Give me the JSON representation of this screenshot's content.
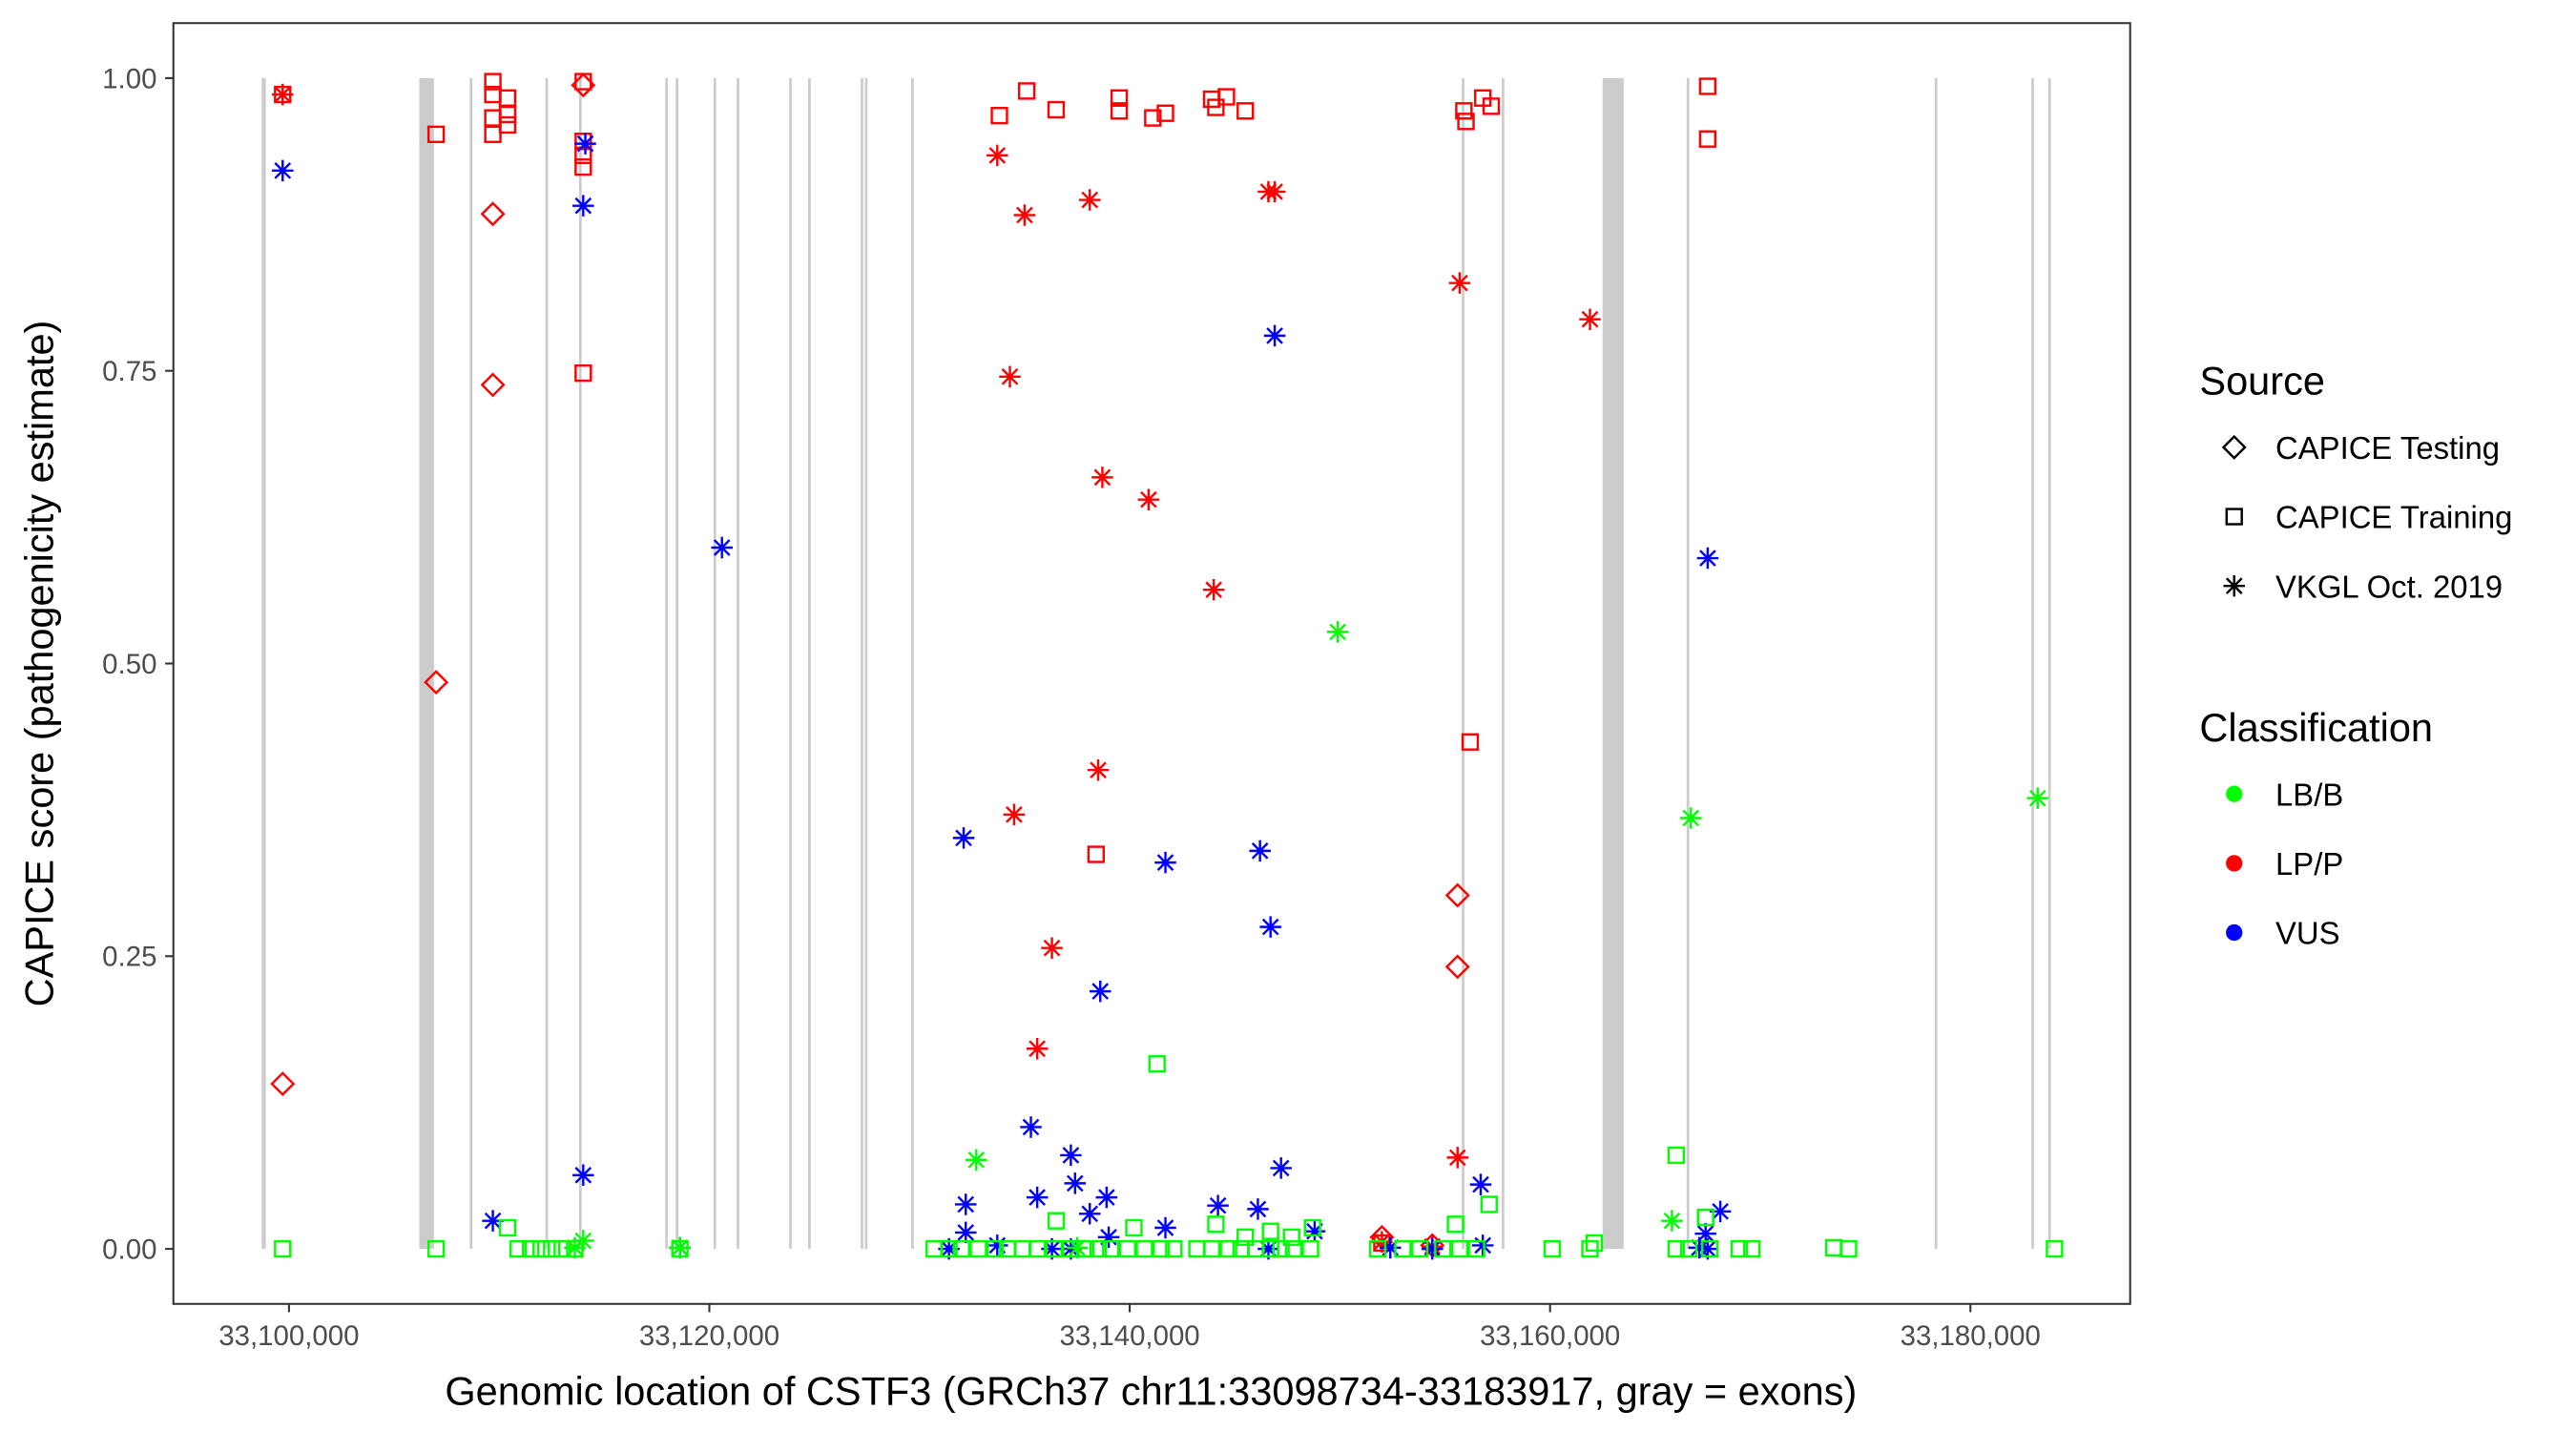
{
  "chart_data": {
    "type": "scatter",
    "xlabel": "Genomic location of CSTF3 (GRCh37 chr11:33098734-33183917, gray = exons)",
    "ylabel": "CAPICE score (pathogenicity estimate)",
    "x_unit": "kb",
    "xlim": [
      33094.5,
      33187.6
    ],
    "ylim": [
      -0.047,
      1.047
    ],
    "xticks": [
      {
        "value": 33100,
        "label": "33,100,000"
      },
      {
        "value": 33120,
        "label": "33,120,000"
      },
      {
        "value": 33140,
        "label": "33,140,000"
      },
      {
        "value": 33160,
        "label": "33,160,000"
      },
      {
        "value": 33180,
        "label": "33,180,000"
      }
    ],
    "yticks": [
      {
        "value": 0,
        "label": "0.00"
      },
      {
        "value": 0.25,
        "label": "0.25"
      },
      {
        "value": 0.5,
        "label": "0.50"
      },
      {
        "value": 0.75,
        "label": "0.75"
      },
      {
        "value": 1,
        "label": "1.00"
      }
    ],
    "grid": false,
    "exons_kb": [
      [
        33098.7,
        33098.9
      ],
      [
        33106.2,
        33106.9
      ],
      [
        33108.6,
        33108.7
      ],
      [
        33112.2,
        33112.3
      ],
      [
        33113.8,
        33113.9
      ],
      [
        33117.9,
        33118.0
      ],
      [
        33118.4,
        33118.5
      ],
      [
        33120.2,
        33120.3
      ],
      [
        33121.3,
        33121.4
      ],
      [
        33123.8,
        33123.9
      ],
      [
        33124.7,
        33124.8
      ],
      [
        33127.2,
        33127.3
      ],
      [
        33127.4,
        33127.5
      ],
      [
        33129.6,
        33129.7
      ],
      [
        33155.8,
        33155.9
      ],
      [
        33157.7,
        33157.8
      ],
      [
        33162.5,
        33163.5
      ],
      [
        33166.5,
        33166.6
      ],
      [
        33178.3,
        33178.4
      ],
      [
        33182.9,
        33183.0
      ],
      [
        33183.7,
        33183.8
      ]
    ],
    "legend": {
      "position": "right",
      "source_title": "Source",
      "source": [
        {
          "key": "testing",
          "label": "CAPICE Testing",
          "shape": "diamond"
        },
        {
          "key": "training",
          "label": "CAPICE Training",
          "shape": "square"
        },
        {
          "key": "vkgl",
          "label": "VKGL Oct. 2019",
          "shape": "asterisk"
        }
      ],
      "class_title": "Classification",
      "classes": [
        {
          "key": "LB/B",
          "label": "LB/B",
          "color": "#00ff00"
        },
        {
          "key": "LP/P",
          "label": "LP/P",
          "color": "#ff0000"
        },
        {
          "key": "VUS",
          "label": "VUS",
          "color": "#0000ff"
        }
      ]
    },
    "series": [
      {
        "source": "testing",
        "class": "LP/P",
        "points": [
          [
            33109.7,
            0.884
          ],
          [
            33109.7,
            0.738
          ],
          [
            33107.0,
            0.484
          ],
          [
            33099.7,
            0.141
          ],
          [
            33114.0,
            0.994
          ],
          [
            33155.6,
            0.302
          ],
          [
            33155.6,
            0.241
          ],
          [
            33152.0,
            0.01
          ],
          [
            33154.4,
            0.003
          ]
        ]
      },
      {
        "source": "training",
        "class": "LP/P",
        "points": [
          [
            33099.7,
            0.986
          ],
          [
            33107.0,
            0.952
          ],
          [
            33109.7,
            0.997
          ],
          [
            33109.7,
            0.986
          ],
          [
            33109.7,
            0.966
          ],
          [
            33109.7,
            0.952
          ],
          [
            33110.4,
            0.983
          ],
          [
            33110.4,
            0.969
          ],
          [
            33110.4,
            0.96
          ],
          [
            33114.0,
            0.997
          ],
          [
            33114.0,
            0.946
          ],
          [
            33114.0,
            0.934
          ],
          [
            33114.0,
            0.924
          ],
          [
            33114.0,
            0.748
          ],
          [
            33133.8,
            0.968
          ],
          [
            33135.1,
            0.989
          ],
          [
            33136.5,
            0.973
          ],
          [
            33139.5,
            0.983
          ],
          [
            33139.5,
            0.972
          ],
          [
            33141.1,
            0.966
          ],
          [
            33141.7,
            0.97
          ],
          [
            33143.9,
            0.982
          ],
          [
            33144.1,
            0.975
          ],
          [
            33144.6,
            0.984
          ],
          [
            33145.5,
            0.972
          ],
          [
            33155.9,
            0.972
          ],
          [
            33156.0,
            0.963
          ],
          [
            33156.8,
            0.983
          ],
          [
            33157.2,
            0.976
          ],
          [
            33156.2,
            0.433
          ],
          [
            33138.4,
            0.337
          ],
          [
            33167.5,
            0.993
          ],
          [
            33167.5,
            0.948
          ],
          [
            33152.0,
            0.005
          ]
        ]
      },
      {
        "source": "vkgl",
        "class": "LP/P",
        "points": [
          [
            33099.7,
            0.986
          ],
          [
            33133.7,
            0.934
          ],
          [
            33135.0,
            0.883
          ],
          [
            33138.1,
            0.896
          ],
          [
            33146.6,
            0.903
          ],
          [
            33146.9,
            0.903
          ],
          [
            33155.7,
            0.825
          ],
          [
            33161.9,
            0.794
          ],
          [
            33134.3,
            0.745
          ],
          [
            33138.7,
            0.659
          ],
          [
            33140.9,
            0.64
          ],
          [
            33144.0,
            0.563
          ],
          [
            33138.5,
            0.409
          ],
          [
            33134.5,
            0.371
          ],
          [
            33136.3,
            0.257
          ],
          [
            33135.6,
            0.171
          ],
          [
            33155.6,
            0.078
          ],
          [
            33152.0,
            0.006
          ],
          [
            33154.4,
            0.002
          ]
        ]
      },
      {
        "source": "vkgl",
        "class": "VUS",
        "points": [
          [
            33099.7,
            0.921
          ],
          [
            33114.1,
            0.944
          ],
          [
            33114.0,
            0.891
          ],
          [
            33146.9,
            0.78
          ],
          [
            33120.6,
            0.599
          ],
          [
            33167.5,
            0.59
          ],
          [
            33132.1,
            0.351
          ],
          [
            33141.7,
            0.33
          ],
          [
            33146.2,
            0.34
          ],
          [
            33146.7,
            0.275
          ],
          [
            33138.6,
            0.22
          ],
          [
            33135.3,
            0.104
          ],
          [
            33137.2,
            0.08
          ],
          [
            33147.2,
            0.069
          ],
          [
            33114.0,
            0.063
          ],
          [
            33137.4,
            0.056
          ],
          [
            33156.7,
            0.055
          ],
          [
            33132.2,
            0.038
          ],
          [
            33135.6,
            0.044
          ],
          [
            33138.9,
            0.044
          ],
          [
            33144.2,
            0.037
          ],
          [
            33146.1,
            0.034
          ],
          [
            33168.1,
            0.032
          ],
          [
            33109.7,
            0.024
          ],
          [
            33138.1,
            0.03
          ],
          [
            33141.7,
            0.018
          ],
          [
            33132.2,
            0.014
          ],
          [
            33148.8,
            0.015
          ],
          [
            33118.6,
            0.001
          ],
          [
            33131.4,
            0.0
          ],
          [
            33133.7,
            0.003
          ],
          [
            33136.3,
            0.0
          ],
          [
            33137.2,
            0.0
          ],
          [
            33139.0,
            0.01
          ],
          [
            33146.6,
            0.0
          ],
          [
            33152.4,
            0.001
          ],
          [
            33154.4,
            0.0
          ],
          [
            33156.8,
            0.003
          ],
          [
            33167.4,
            0.013
          ],
          [
            33167.5,
            0.0
          ],
          [
            33167.1,
            0.001
          ]
        ]
      },
      {
        "source": "vkgl",
        "class": "LB/B",
        "points": [
          [
            33149.9,
            0.527
          ],
          [
            33166.7,
            0.368
          ],
          [
            33183.2,
            0.385
          ],
          [
            33132.7,
            0.076
          ],
          [
            33165.8,
            0.024
          ],
          [
            33114.0,
            0.007
          ],
          [
            33113.6,
            0.001
          ],
          [
            33118.6,
            0.001
          ],
          [
            33137.5,
            0.001
          ]
        ]
      },
      {
        "source": "training",
        "class": "LB/B",
        "points": [
          [
            33141.3,
            0.158
          ],
          [
            33166.0,
            0.08
          ],
          [
            33157.1,
            0.038
          ],
          [
            33136.5,
            0.024
          ],
          [
            33140.2,
            0.018
          ],
          [
            33144.1,
            0.021
          ],
          [
            33110.4,
            0.018
          ],
          [
            33155.5,
            0.021
          ],
          [
            33167.4,
            0.027
          ],
          [
            33145.5,
            0.01
          ],
          [
            33147.7,
            0.01
          ],
          [
            33146.7,
            0.015
          ],
          [
            33148.7,
            0.018
          ],
          [
            33099.7,
            0.0
          ],
          [
            33107.0,
            0.0
          ],
          [
            33110.9,
            0.0
          ],
          [
            33111.5,
            0.0
          ],
          [
            33112.0,
            0.0
          ],
          [
            33112.5,
            0.0
          ],
          [
            33113.0,
            0.0
          ],
          [
            33113.6,
            0.0
          ],
          [
            33118.6,
            0.0
          ],
          [
            33130.7,
            0.0
          ],
          [
            33131.4,
            0.0
          ],
          [
            33132.0,
            0.0
          ],
          [
            33132.8,
            0.0
          ],
          [
            33133.6,
            0.0
          ],
          [
            33134.2,
            0.0
          ],
          [
            33134.9,
            0.0
          ],
          [
            33135.6,
            0.0
          ],
          [
            33136.4,
            0.0
          ],
          [
            33137.2,
            0.0
          ],
          [
            33137.9,
            0.0
          ],
          [
            33138.5,
            0.0
          ],
          [
            33139.1,
            0.0
          ],
          [
            33139.9,
            0.0
          ],
          [
            33140.7,
            0.0
          ],
          [
            33141.5,
            0.0
          ],
          [
            33142.1,
            0.0
          ],
          [
            33143.2,
            0.0
          ],
          [
            33143.9,
            0.0
          ],
          [
            33144.7,
            0.0
          ],
          [
            33145.3,
            0.0
          ],
          [
            33146.0,
            0.0
          ],
          [
            33146.7,
            0.0
          ],
          [
            33147.2,
            0.0
          ],
          [
            33147.8,
            0.0
          ],
          [
            33148.6,
            0.0
          ],
          [
            33151.8,
            0.0
          ],
          [
            33153.0,
            0.0
          ],
          [
            33153.8,
            0.0
          ],
          [
            33154.9,
            0.0
          ],
          [
            33155.7,
            0.0
          ],
          [
            33156.5,
            0.0
          ],
          [
            33160.1,
            0.0
          ],
          [
            33161.9,
            0.0
          ],
          [
            33162.1,
            0.005
          ],
          [
            33166.0,
            0.0
          ],
          [
            33166.6,
            0.0
          ],
          [
            33167.6,
            0.0
          ],
          [
            33169.0,
            0.0
          ],
          [
            33169.6,
            0.0
          ],
          [
            33173.5,
            0.001
          ],
          [
            33174.2,
            0.0
          ],
          [
            33184.0,
            0.0
          ]
        ]
      }
    ]
  }
}
